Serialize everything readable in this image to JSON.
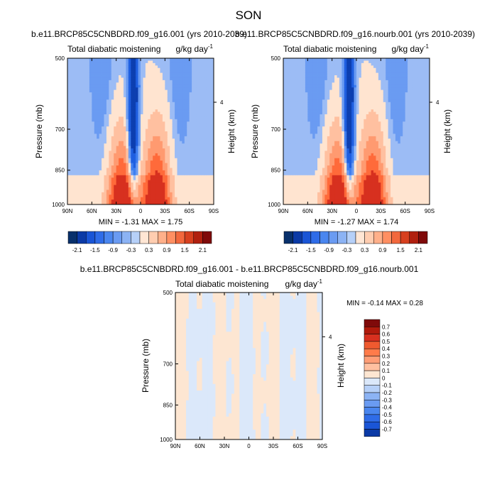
{
  "figure": {
    "title": "SON"
  },
  "colors": {
    "diverging_11": [
      "#08306b",
      "#0d3fb0",
      "#1f5fe0",
      "#3f7ff0",
      "#6a9bf2",
      "#9cbcf5",
      "#ffe4d0",
      "#ffc0a0",
      "#ff9a70",
      "#ff6a3a",
      "#d7301f",
      "#8b0d0d"
    ]
  },
  "chart_data": [
    {
      "id": "case1",
      "type": "heatmap",
      "title": "b.e11.BRCP85C5CNBDRD.f09_g16.001 (yrs 2010-2039)",
      "left_label": "Total diabatic moistening",
      "units": "g/kg day",
      "units_sup": "-1",
      "xlabel": "",
      "ylabel": "Pressure (mb)",
      "ylabel_right": "Height (km)",
      "x_ticks": [
        "90N",
        "60N",
        "30N",
        "0",
        "30S",
        "60S",
        "90S"
      ],
      "y_ticks": [
        "500",
        "700",
        "850",
        "1000"
      ],
      "right_ticks": [
        "4"
      ],
      "stats": "MIN =  -1.31   MAX =   1.75",
      "min": -1.31,
      "max": 1.75,
      "colorbar_labels": [
        "-2.1",
        "-1.5",
        "-0.9",
        "-0.3",
        "0.3",
        "0.9",
        "1.5",
        "2.1"
      ]
    },
    {
      "id": "case2",
      "type": "heatmap",
      "title": "b.e11.BRCP85C5CNBDRD.f09_g16.nourb.001 (yrs 2010-2039)",
      "left_label": "Total diabatic moistening",
      "units": "g/kg day",
      "units_sup": "-1",
      "xlabel": "",
      "ylabel": "Pressure (mb)",
      "ylabel_right": "Height (km)",
      "x_ticks": [
        "90N",
        "60N",
        "30N",
        "0",
        "30S",
        "60S",
        "90S"
      ],
      "y_ticks": [
        "500",
        "700",
        "850",
        "1000"
      ],
      "right_ticks": [
        "4"
      ],
      "stats": "MIN =  -1.27   MAX =   1.74",
      "min": -1.27,
      "max": 1.74,
      "colorbar_labels": [
        "-2.1",
        "-1.5",
        "-0.9",
        "-0.3",
        "0.3",
        "0.9",
        "1.5",
        "2.1"
      ]
    },
    {
      "id": "diff",
      "type": "heatmap",
      "title": "b.e11.BRCP85C5CNBDRD.f09_g16.001 - b.e11.BRCP85C5CNBDRD.f09_g16.nourb.001",
      "left_label": "Total diabatic moistening",
      "units": "g/kg day",
      "units_sup": "-1",
      "xlabel": "",
      "ylabel": "Pressure (mb)",
      "ylabel_right": "Height (km)",
      "x_ticks": [
        "90N",
        "60N",
        "30N",
        "0",
        "30S",
        "60S",
        "90S"
      ],
      "y_ticks": [
        "500",
        "700",
        "850",
        "1000"
      ],
      "right_ticks": [
        "4"
      ],
      "stats": "MIN =  -0.14   MAX =   0.28",
      "min": -0.14,
      "max": 0.28,
      "colorbar_labels": [
        "0.7",
        "0.6",
        "0.5",
        "0.4",
        "0.3",
        "0.2",
        "0.1",
        "0",
        "-0.1",
        "-0.2",
        "-0.3",
        "-0.4",
        "-0.5",
        "-0.6",
        "-0.7"
      ]
    }
  ]
}
